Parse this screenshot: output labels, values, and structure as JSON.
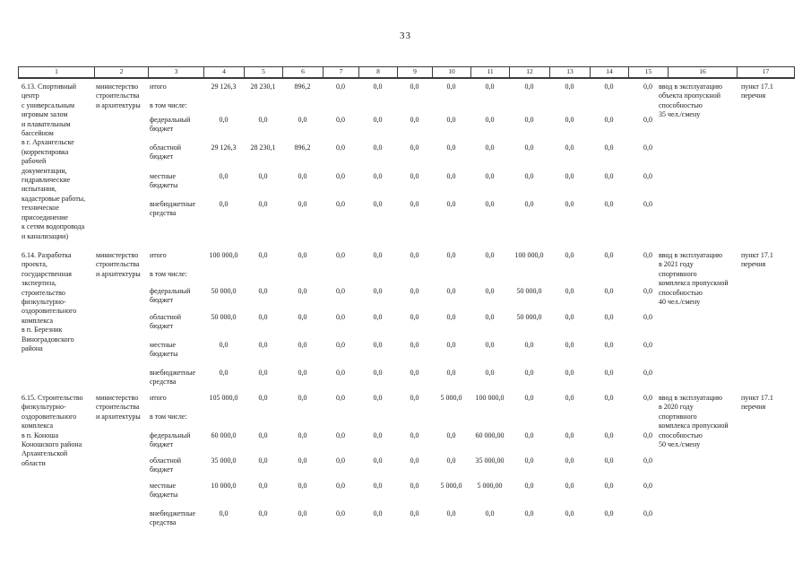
{
  "page": {
    "number": "33"
  },
  "header": {
    "columns": [
      "1",
      "2",
      "3",
      "4",
      "5",
      "6",
      "7",
      "8",
      "9",
      "10",
      "11",
      "12",
      "13",
      "14",
      "15",
      "16",
      "17"
    ]
  },
  "funding_row_labels": [
    "итого",
    "в том числе:",
    "федеральный бюджет",
    "областной бюджет",
    "местные бюджеты",
    "внебюджетные средства"
  ],
  "sections": [
    {
      "title_lines": [
        "6.13. Спортивный",
        "центр",
        "с универсальным",
        "игровым залом",
        "и плавательным",
        "бассейном",
        "в г. Архангельске",
        "(корректировка",
        "рабочей",
        "документации,",
        "гидравлические",
        "испытания,",
        "кадастровые работы,",
        "техническое",
        "присоединение",
        "к сетям водопровода",
        "и канализации)"
      ],
      "ministry_lines": [
        "министерство",
        "строительства",
        "и архитектуры"
      ],
      "rows": [
        {
          "label": "итого",
          "values": [
            "29 126,3",
            "28 230,1",
            "896,2",
            "0,0",
            "0,0",
            "0,0",
            "0,0",
            "0,0",
            "0,0",
            "0,0",
            "0,0",
            "0,0"
          ]
        },
        {
          "label": "в том числе:",
          "values": []
        },
        {
          "label": "федеральный бюджет",
          "values": [
            "0,0",
            "0,0",
            "0,0",
            "0,0",
            "0,0",
            "0,0",
            "0,0",
            "0,0",
            "0,0",
            "0,0",
            "0,0",
            "0,0"
          ]
        },
        {
          "label": "областной бюджет",
          "values": [
            "29 126,3",
            "28 230,1",
            "896,2",
            "0,0",
            "0,0",
            "0,0",
            "0,0",
            "0,0",
            "0,0",
            "0,0",
            "0,0",
            "0,0"
          ]
        },
        {
          "label": "местные бюджеты",
          "values": [
            "0,0",
            "0,0",
            "0,0",
            "0,0",
            "0,0",
            "0,0",
            "0,0",
            "0,0",
            "0,0",
            "0,0",
            "0,0",
            "0,0"
          ]
        },
        {
          "label": "внебюджетные средства",
          "values": [
            "0,0",
            "0,0",
            "0,0",
            "0,0",
            "0,0",
            "0,0",
            "0,0",
            "0,0",
            "0,0",
            "0,0",
            "0,0",
            "0,0"
          ]
        }
      ],
      "result_lines": [
        "ввод в эксплуатацию",
        "объекта пропускной",
        "способностью",
        "35 чел./смену"
      ],
      "reference_lines": [
        "пункт 17.1",
        "перечня"
      ]
    },
    {
      "title_lines": [
        "6.14. Разработка",
        "проекта,",
        "государственная",
        "экспертиза,",
        "строительство",
        "физкультурно-",
        "оздоровительного",
        "комплекса",
        "в п. Березник",
        "Виноградовского",
        "района"
      ],
      "ministry_lines": [
        "министерство",
        "строительства",
        "и архитектуры"
      ],
      "rows": [
        {
          "label": "итого",
          "values": [
            "100 000,0",
            "0,0",
            "0,0",
            "0,0",
            "0,0",
            "0,0",
            "0,0",
            "0,0",
            "100 000,0",
            "0,0",
            "0,0",
            "0,0"
          ]
        },
        {
          "label": "в том числе:",
          "values": []
        },
        {
          "label": "федеральный бюджет",
          "values": [
            "50 000,0",
            "0,0",
            "0,0",
            "0,0",
            "0,0",
            "0,0",
            "0,0",
            "0,0",
            "50 000,0",
            "0,0",
            "0,0",
            "0,0"
          ]
        },
        {
          "label": "областной бюджет",
          "values": [
            "50 000,0",
            "0,0",
            "0,0",
            "0,0",
            "0,0",
            "0,0",
            "0,0",
            "0,0",
            "50 000,0",
            "0,0",
            "0,0",
            "0,0"
          ]
        },
        {
          "label": "местные бюджеты",
          "values": [
            "0,0",
            "0,0",
            "0,0",
            "0,0",
            "0,0",
            "0,0",
            "0,0",
            "0,0",
            "0,0",
            "0,0",
            "0,0",
            "0,0"
          ]
        },
        {
          "label": "внебюджетные средства",
          "values": [
            "0,0",
            "0,0",
            "0,0",
            "0,0",
            "0,0",
            "0,0",
            "0,0",
            "0,0",
            "0,0",
            "0,0",
            "0,0",
            "0,0"
          ]
        }
      ],
      "result_lines": [
        "ввод в эксплуатацию",
        "в 2021 году",
        "спортивного",
        "комплекса пропускной",
        "способностью",
        "40 чел./смену"
      ],
      "reference_lines": [
        "пункт 17.1",
        "перечня"
      ]
    },
    {
      "title_lines": [
        "6.15. Строительство",
        "физкультурно-",
        "оздоровительного",
        "комплекса",
        "в п. Коноша",
        "Коношского района",
        "Архангельской",
        "области"
      ],
      "ministry_lines": [
        "министерство",
        "строительства",
        "и архитектуры"
      ],
      "rows": [
        {
          "label": "итого",
          "values": [
            "105 000,0",
            "0,0",
            "0,0",
            "0,0",
            "0,0",
            "0,0",
            "5 000,0",
            "100 000,0",
            "0,0",
            "0,0",
            "0,0",
            "0,0"
          ]
        },
        {
          "label": "в том числе:",
          "values": []
        },
        {
          "label": "федеральный бюджет",
          "values": [
            "60 000,0",
            "0,0",
            "0,0",
            "0,0",
            "0,0",
            "0,0",
            "0,0",
            "60 000,00",
            "0,0",
            "0,0",
            "0,0",
            "0,0"
          ]
        },
        {
          "label": "областной бюджет",
          "values": [
            "35 000,0",
            "0,0",
            "0,0",
            "0,0",
            "0,0",
            "0,0",
            "0,0",
            "35 000,00",
            "0,0",
            "0,0",
            "0,0",
            "0,0"
          ]
        },
        {
          "label": "местные бюджеты",
          "values": [
            "10 000,0",
            "0,0",
            "0,0",
            "0,0",
            "0,0",
            "0,0",
            "5 000,0",
            "5 000,00",
            "0,0",
            "0,0",
            "0,0",
            "0,0"
          ]
        },
        {
          "label": "внебюджетные средства",
          "values": [
            "0,0",
            "0,0",
            "0,0",
            "0,0",
            "0,0",
            "0,0",
            "0,0",
            "0,0",
            "0,0",
            "0,0",
            "0,0",
            "0,0"
          ]
        }
      ],
      "result_lines": [
        "ввод в эксплуатацию",
        "в 2020 году",
        "спортивного",
        "комплекса пропускной",
        "способностью",
        "50 чел./смену"
      ],
      "reference_lines": [
        "пункт 17.1",
        "перечня"
      ]
    }
  ]
}
